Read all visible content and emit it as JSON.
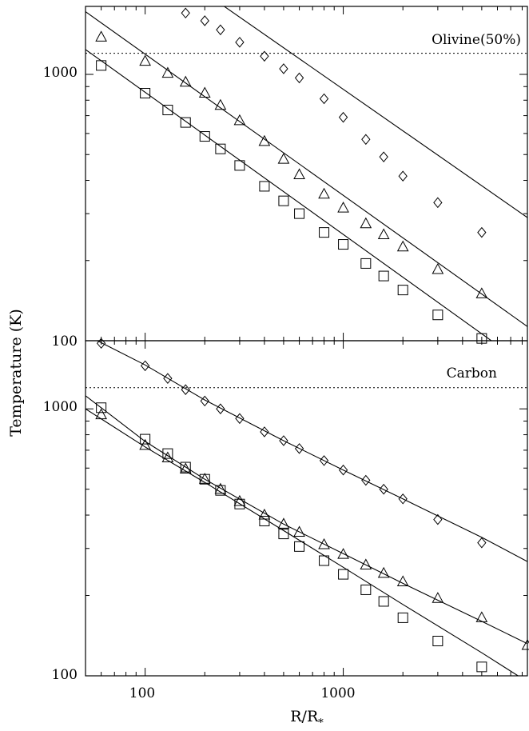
{
  "y_axis_label": "Temperature (K)",
  "x_axis_label": "R/R",
  "x_axis_label_subscript": "*",
  "chart_data": [
    {
      "type": "scatter",
      "panel_label": "Olivine(50%)",
      "x_scale": "log",
      "y_scale": "log",
      "xlim": [
        50,
        8500
      ],
      "ylim": [
        100,
        1800
      ],
      "x_ticks": [
        100,
        1000
      ],
      "y_ticks": [
        100,
        1000
      ],
      "dashed_threshold": 1200,
      "markers": [
        {
          "symbol": "diamond",
          "x": [
            160,
            200,
            240,
            300,
            400,
            500,
            600,
            800,
            1000,
            1300,
            1600,
            2000,
            3000,
            5000
          ],
          "y": [
            1700,
            1590,
            1470,
            1320,
            1170,
            1050,
            970,
            810,
            690,
            570,
            490,
            415,
            330,
            255
          ]
        },
        {
          "symbol": "triangle",
          "x": [
            60,
            100,
            130,
            160,
            200,
            240,
            300,
            400,
            500,
            600,
            800,
            1000,
            1300,
            1600,
            2000,
            3000,
            5000
          ],
          "y": [
            1380,
            1120,
            1010,
            935,
            850,
            765,
            670,
            560,
            480,
            420,
            355,
            315,
            275,
            250,
            225,
            185,
            150
          ]
        },
        {
          "symbol": "square",
          "x": [
            60,
            100,
            130,
            160,
            200,
            240,
            300,
            400,
            500,
            600,
            800,
            1000,
            1300,
            1600,
            2000,
            3000,
            5000
          ],
          "y": [
            1080,
            850,
            735,
            660,
            585,
            525,
            455,
            380,
            335,
            300,
            255,
            230,
            195,
            175,
            155,
            125,
            102
          ]
        }
      ],
      "fits": [
        {
          "x": [
            50,
            8500
          ],
          "y": [
            4150,
            290
          ]
        },
        {
          "x": [
            50,
            8500
          ],
          "y": [
            1720,
            113
          ]
        },
        {
          "x": [
            50,
            8500
          ],
          "y": [
            1240,
            80
          ]
        }
      ]
    },
    {
      "type": "scatter",
      "panel_label": "Carbon",
      "x_scale": "log",
      "y_scale": "log",
      "xlim": [
        50,
        8500
      ],
      "ylim": [
        100,
        1800
      ],
      "x_ticks": [
        100,
        1000
      ],
      "y_ticks": [
        100,
        1000
      ],
      "dashed_threshold": 1200,
      "markers": [
        {
          "symbol": "diamond",
          "x": [
            60,
            100,
            130,
            160,
            200,
            240,
            300,
            400,
            500,
            600,
            800,
            1000,
            1300,
            1600,
            2000,
            3000,
            5000
          ],
          "y": [
            1760,
            1450,
            1300,
            1180,
            1070,
            1000,
            920,
            820,
            760,
            710,
            640,
            590,
            540,
            500,
            460,
            385,
            315
          ]
        },
        {
          "symbol": "triangle",
          "x": [
            60,
            100,
            130,
            160,
            200,
            240,
            300,
            400,
            500,
            600,
            800,
            1000,
            1300,
            1600,
            2000,
            3000,
            5000,
            8500
          ],
          "y": [
            950,
            730,
            655,
            595,
            545,
            500,
            450,
            400,
            370,
            345,
            310,
            285,
            260,
            242,
            225,
            195,
            165,
            130
          ]
        },
        {
          "symbol": "square",
          "x": [
            60,
            100,
            130,
            160,
            200,
            240,
            300,
            400,
            500,
            600,
            800,
            1000,
            1300,
            1600,
            2000,
            3000,
            5000
          ],
          "y": [
            1010,
            770,
            680,
            605,
            545,
            495,
            440,
            380,
            340,
            305,
            270,
            240,
            210,
            190,
            165,
            135,
            108
          ]
        }
      ],
      "fits": [
        {
          "x": [
            50,
            60,
            100,
            200,
            500,
            1000,
            2000,
            5000,
            8500
          ],
          "y": [
            1900,
            1770,
            1460,
            1080,
            760,
            590,
            460,
            330,
            268
          ]
        },
        {
          "x": [
            50,
            100,
            200,
            500,
            1000,
            2000,
            5000,
            8500
          ],
          "y": [
            1120,
            755,
            545,
            370,
            287,
            222,
            160,
            132
          ]
        },
        {
          "x": [
            50,
            100,
            200,
            500,
            1000,
            2000,
            5000,
            8500
          ],
          "y": [
            1000,
            720,
            530,
            350,
            255,
            185,
            122,
            95
          ]
        }
      ]
    }
  ]
}
